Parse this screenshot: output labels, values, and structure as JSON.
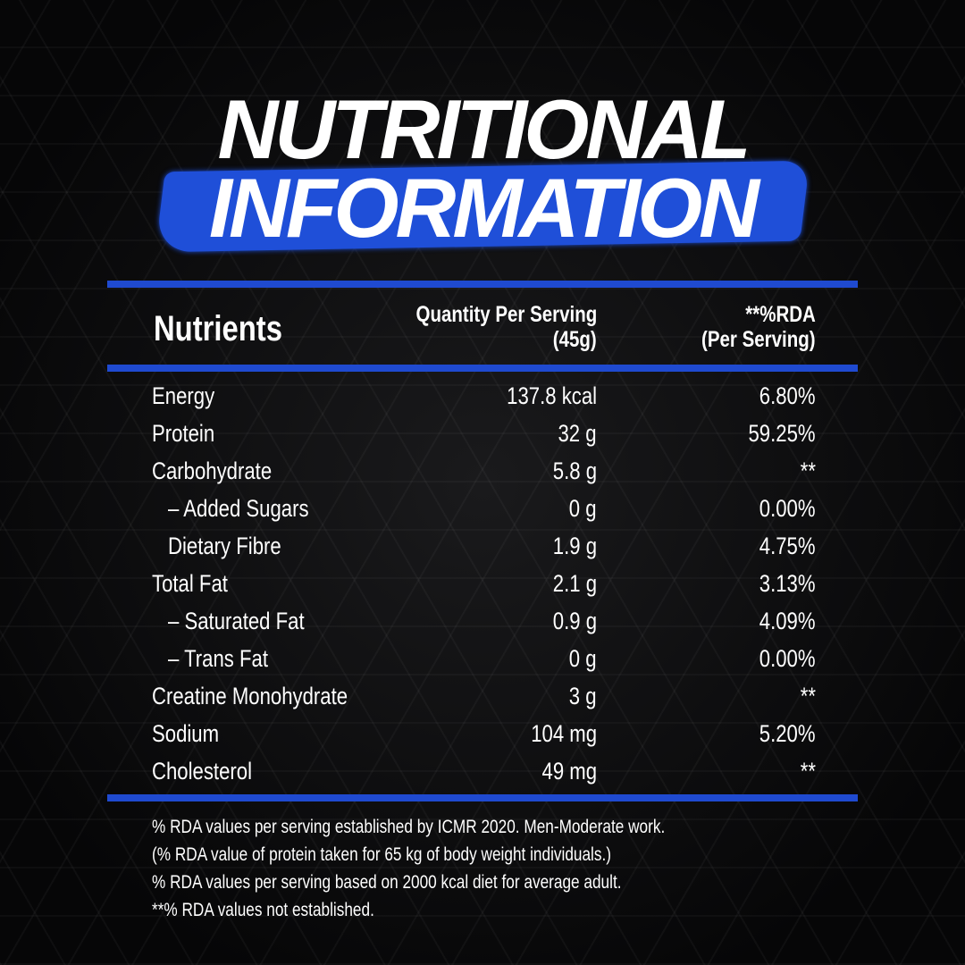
{
  "title": {
    "line1": "NUTRITIONAL",
    "line2": "INFORMATION"
  },
  "colors": {
    "accent": "#1f4ad0",
    "background": "#0b0b0c",
    "text": "#ffffff"
  },
  "header": {
    "nutrients": "Nutrients",
    "qty_line1": "Quantity Per Serving",
    "qty_line2": "(45g)",
    "rda_line1": "**%RDA",
    "rda_line2": "(Per Serving)"
  },
  "rows": [
    {
      "name": "Energy",
      "qty": "137.8 kcal",
      "rda": "6.80%"
    },
    {
      "name": "Protein",
      "qty": "32 g",
      "rda": "59.25%"
    },
    {
      "name": "Carbohydrate",
      "qty": "5.8 g",
      "rda": "**"
    },
    {
      "name": "– Added Sugars",
      "qty": "0 g",
      "rda": "0.00%"
    },
    {
      "name": "Dietary Fibre",
      "qty": "1.9 g",
      "rda": "4.75%"
    },
    {
      "name": "Total Fat",
      "qty": "2.1 g",
      "rda": "3.13%"
    },
    {
      "name": "– Saturated Fat",
      "qty": "0.9 g",
      "rda": "4.09%"
    },
    {
      "name": "– Trans Fat",
      "qty": "0 g",
      "rda": "0.00%"
    },
    {
      "name": "Creatine Monohydrate",
      "qty": "3 g",
      "rda": "**"
    },
    {
      "name": "Sodium",
      "qty": "104 mg",
      "rda": "5.20%"
    },
    {
      "name": "Cholesterol",
      "qty": "49 mg",
      "rda": "**"
    }
  ],
  "notes": [
    "% RDA values per serving established by ICMR 2020. Men-Moderate work.",
    "(% RDA value of protein taken for 65 kg of body weight individuals.)",
    "% RDA values per serving based on 2000 kcal diet for average adult.",
    "**% RDA values not established."
  ]
}
